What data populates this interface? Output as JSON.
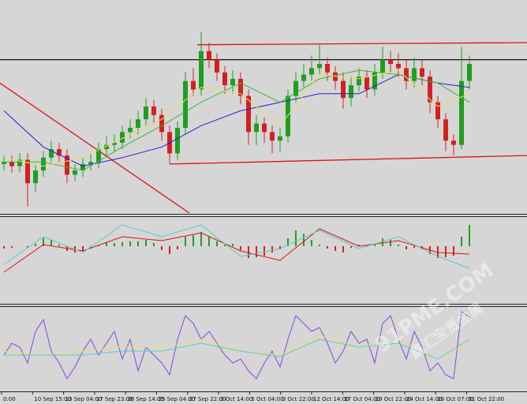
{
  "chart_data": {
    "type": "candlestick",
    "x_labels": [
      "0:00",
      "10 Sep 15:00",
      "13 Sep 04:00",
      "17 Sep 23:00",
      "20 Sep 14:00",
      "25 Sep 04:00",
      "27 Sep 22:00",
      "2 Oct 14:00",
      "5 Oct 04:00",
      "9 Oct 22:00",
      "12 Oct 14:00",
      "17 Oct 04:00",
      "19 Oct 22:00",
      "24 Oct 14:00",
      "29 Oct 07:00",
      "31 Oct 22:00"
    ],
    "ylim": [
      0,
      100
    ],
    "up_color": "#1f9e1f",
    "down_color": "#d42020",
    "open": [
      23,
      24,
      22,
      25,
      14,
      20,
      26,
      30,
      27,
      18,
      20,
      23,
      24,
      30,
      32,
      33,
      38,
      40,
      44,
      50,
      46,
      38,
      28,
      40,
      62,
      58,
      76,
      72,
      66,
      60,
      63,
      55,
      38,
      42,
      38,
      34,
      36,
      55,
      62,
      65,
      68,
      70,
      66,
      62,
      54,
      60,
      64,
      58,
      66,
      72,
      70,
      68,
      62,
      68,
      64,
      52,
      44,
      34,
      32,
      62
    ],
    "high": [
      27,
      27,
      28,
      28,
      23,
      29,
      34,
      33,
      30,
      23,
      26,
      28,
      33,
      36,
      37,
      41,
      44,
      48,
      54,
      53,
      49,
      41,
      43,
      66,
      68,
      85,
      80,
      75,
      69,
      67,
      66,
      58,
      46,
      45,
      41,
      40,
      58,
      66,
      70,
      74,
      79,
      73,
      69,
      66,
      64,
      68,
      67,
      70,
      78,
      76,
      75,
      72,
      73,
      72,
      67,
      55,
      47,
      37,
      78,
      74
    ],
    "low": [
      20,
      19,
      19,
      3,
      10,
      17,
      24,
      24,
      14,
      15,
      17,
      20,
      21,
      27,
      29,
      30,
      35,
      37,
      41,
      42,
      34,
      23,
      25,
      37,
      55,
      55,
      68,
      62,
      56,
      56,
      51,
      32,
      32,
      33,
      28,
      29,
      33,
      52,
      59,
      62,
      65,
      62,
      58,
      49,
      50,
      57,
      54,
      55,
      63,
      66,
      64,
      58,
      59,
      60,
      47,
      40,
      29,
      27,
      30,
      58
    ],
    "close": [
      24,
      22,
      25,
      14,
      20,
      26,
      30,
      27,
      18,
      20,
      23,
      24,
      30,
      32,
      33,
      38,
      40,
      44,
      50,
      46,
      38,
      28,
      40,
      62,
      58,
      76,
      72,
      66,
      60,
      63,
      55,
      38,
      42,
      38,
      34,
      36,
      55,
      62,
      65,
      68,
      70,
      66,
      62,
      54,
      60,
      64,
      58,
      66,
      72,
      70,
      68,
      62,
      68,
      64,
      52,
      44,
      34,
      32,
      62,
      70
    ],
    "overlays": [
      {
        "color": "#2222cc",
        "x": [
          0,
          5,
          10,
          15,
          20,
          25,
          30,
          35,
          40,
          45,
          50,
          55,
          59
        ],
        "values": [
          48,
          31,
          22,
          26,
          31,
          41,
          48,
          52,
          56,
          56,
          65,
          61,
          59
        ]
      },
      {
        "color": "#33bb33",
        "x": [
          0,
          5,
          10,
          15,
          20,
          25,
          30,
          35,
          40,
          45,
          50,
          55,
          59
        ],
        "values": [
          24,
          24,
          20,
          31,
          41,
          52,
          61,
          52,
          63,
          67,
          65,
          61,
          52
        ]
      },
      {
        "color": "#e8e060",
        "x": [
          0,
          5,
          10,
          15,
          20,
          25,
          30,
          35,
          40,
          45,
          50,
          55,
          59
        ],
        "values": [
          26,
          22,
          26,
          35,
          44,
          59,
          56,
          41,
          65,
          63,
          67,
          50,
          56
        ]
      }
    ],
    "levels": [
      {
        "color": "#111111",
        "x": [
          -0.5,
          66.3
        ],
        "values": [
          72,
          72
        ]
      },
      {
        "color": "#dd1111",
        "x": [
          24.5,
          66.3
        ],
        "values": [
          79,
          80
        ]
      },
      {
        "color": "#dd1111",
        "x": [
          21,
          66.3
        ],
        "values": [
          23,
          27
        ]
      },
      {
        "color": "#dd1111",
        "x": [
          -0.5,
          23.5
        ],
        "values": [
          61,
          0
        ]
      }
    ],
    "macd": {
      "ylim": [
        -73,
        37
      ],
      "hist_up_color": "#1f9e1f",
      "hist_down_color": "#d42020",
      "hist": [
        -3,
        -2,
        0,
        -2,
        3,
        10,
        8,
        2,
        -6,
        -8,
        -6,
        -3,
        2,
        5,
        4,
        5,
        6,
        6,
        8,
        4,
        -5,
        -10,
        -4,
        12,
        14,
        18,
        12,
        6,
        2,
        3,
        -5,
        -15,
        -14,
        -12,
        -8,
        -4,
        10,
        20,
        16,
        8,
        2,
        -3,
        -6,
        -8,
        -2,
        2,
        -1,
        3,
        10,
        8,
        2,
        -4,
        -2,
        -4,
        -10,
        -15,
        -14,
        -12,
        12,
        27
      ],
      "lines": [
        {
          "color": "#dd1111",
          "x": [
            0,
            5,
            10,
            15,
            20,
            25,
            30,
            35,
            40,
            45,
            50,
            55,
            59
          ],
          "values": [
            -33,
            2,
            -6,
            12,
            7,
            17,
            -6,
            -18,
            22,
            0,
            7,
            -8,
            -10
          ]
        },
        {
          "color": "#55cccc",
          "x": [
            0,
            5,
            10,
            15,
            20,
            25,
            30,
            35,
            40,
            45,
            50,
            55,
            59
          ],
          "values": [
            -23,
            12,
            -8,
            27,
            12,
            27,
            -13,
            -3,
            20,
            -3,
            12,
            -13,
            -28
          ]
        }
      ]
    },
    "stoch": {
      "ylim": [
        0,
        100
      ],
      "lines": [
        {
          "color": "#8844dd",
          "x": [
            0,
            1,
            2,
            3,
            4,
            5,
            6,
            7,
            8,
            9,
            10,
            11,
            12,
            13,
            14,
            15,
            16,
            17,
            18,
            19,
            20,
            21,
            22,
            23,
            24,
            25,
            26,
            27,
            28,
            29,
            30,
            31,
            32,
            33,
            34,
            35,
            36,
            37,
            38,
            39,
            40,
            41,
            42,
            43,
            44,
            45,
            46,
            47,
            48,
            49,
            50,
            51,
            52,
            53,
            54,
            55,
            56,
            57,
            58,
            59
          ],
          "values": [
            40,
            55,
            50,
            30,
            70,
            85,
            45,
            30,
            10,
            25,
            45,
            60,
            40,
            55,
            70,
            35,
            60,
            20,
            50,
            40,
            30,
            15,
            60,
            90,
            80,
            60,
            70,
            55,
            40,
            30,
            35,
            20,
            10,
            30,
            45,
            25,
            60,
            90,
            80,
            70,
            75,
            55,
            30,
            45,
            70,
            55,
            60,
            30,
            80,
            90,
            60,
            35,
            70,
            50,
            20,
            30,
            15,
            10,
            95,
            88
          ]
        },
        {
          "color": "#e8e060",
          "x": [
            0,
            5,
            10,
            15,
            20,
            25,
            30,
            35,
            40,
            45,
            50,
            55,
            59
          ],
          "values": [
            45,
            40,
            45,
            50,
            50,
            60,
            45,
            40,
            65,
            50,
            60,
            35,
            55
          ]
        },
        {
          "color": "#55cccc",
          "x": [
            0,
            5,
            10,
            15,
            20,
            25,
            30,
            35,
            40,
            45,
            50,
            55,
            59
          ],
          "values": [
            40,
            40,
            40,
            45,
            45,
            55,
            45,
            38,
            60,
            50,
            55,
            35,
            60
          ]
        }
      ]
    },
    "watermark": {
      "site": "91PME.COM",
      "brand": "鑫汇宝贵金属"
    }
  }
}
